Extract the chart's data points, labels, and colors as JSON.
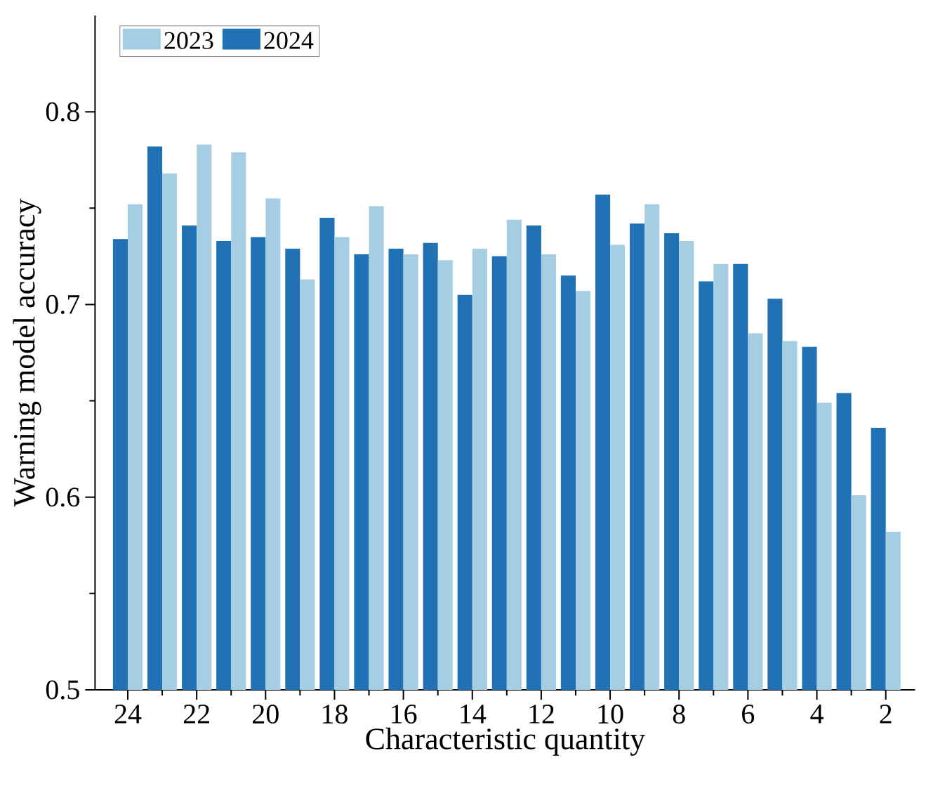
{
  "chart_data": {
    "type": "bar",
    "xlabel": "Characteristic quantity",
    "ylabel": "Warning model accuracy",
    "categories": [
      "24",
      null,
      "22",
      null,
      "20",
      null,
      "18",
      null,
      "16",
      null,
      "14",
      null,
      "12",
      null,
      "10",
      null,
      "8",
      null,
      "6",
      null,
      "4",
      null,
      "2"
    ],
    "series": [
      {
        "name": "2024",
        "color": "#2072b4",
        "values": [
          0.734,
          0.782,
          0.741,
          0.733,
          0.735,
          0.729,
          0.745,
          0.726,
          0.729,
          0.732,
          0.705,
          0.725,
          0.741,
          0.715,
          0.757,
          0.742,
          0.737,
          0.712,
          0.721,
          0.703,
          0.678,
          0.654,
          0.636
        ]
      },
      {
        "name": "2023",
        "color": "#a6cee3",
        "values": [
          0.752,
          0.768,
          0.783,
          0.779,
          0.755,
          0.713,
          0.735,
          0.751,
          0.726,
          0.723,
          0.729,
          0.744,
          0.726,
          0.707,
          0.731,
          0.752,
          0.733,
          0.721,
          0.685,
          0.681,
          0.649,
          0.601,
          0.582
        ]
      }
    ],
    "ylim": [
      0.5,
      0.85
    ],
    "yticks": [
      0.5,
      0.6,
      0.7,
      0.8
    ],
    "grid": false,
    "legend": "top left"
  }
}
